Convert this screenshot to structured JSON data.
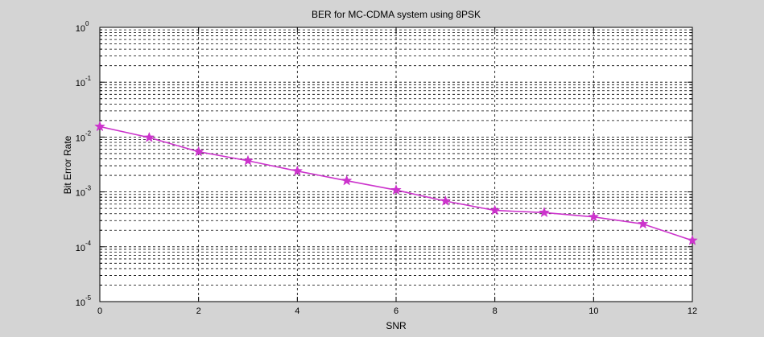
{
  "chart_data": {
    "type": "line",
    "title": "BER for MC-CDMA system using 8PSK",
    "xlabel": "SNR",
    "ylabel": "Bit Error Rate",
    "x_scale": "linear",
    "y_scale": "log",
    "xlim": [
      0,
      12
    ],
    "ylim": [
      1e-05,
      1
    ],
    "grid": true,
    "grid_style": "dashed",
    "x_ticks": [
      0,
      2,
      4,
      6,
      8,
      10,
      12
    ],
    "x_tick_labels": [
      "0",
      "2",
      "4",
      "6",
      "8",
      "10",
      "12"
    ],
    "y_ticks": [
      {
        "value": 1,
        "base": "10",
        "exp": "0"
      },
      {
        "value": 0.1,
        "base": "10",
        "exp": "-1"
      },
      {
        "value": 0.01,
        "base": "10",
        "exp": "-2"
      },
      {
        "value": 0.001,
        "base": "10",
        "exp": "-3"
      },
      {
        "value": 0.0001,
        "base": "10",
        "exp": "-4"
      },
      {
        "value": 1e-05,
        "base": "10",
        "exp": "-5"
      }
    ],
    "series": [
      {
        "marker": "star",
        "color": "#cc33cc",
        "x": [
          0,
          1,
          2,
          3,
          4,
          5,
          6,
          7,
          8,
          9,
          10,
          11,
          12
        ],
        "y": [
          0.0155,
          0.0098,
          0.0054,
          0.0037,
          0.0024,
          0.0016,
          0.00108,
          0.00068,
          0.00046,
          0.00042,
          0.00035,
          0.00026,
          0.00013
        ]
      }
    ]
  },
  "colors": {
    "figure_background": "#d4d4d4",
    "axes_background": "#ffffff",
    "grid": "#000000",
    "series_line": "#cc33cc"
  }
}
